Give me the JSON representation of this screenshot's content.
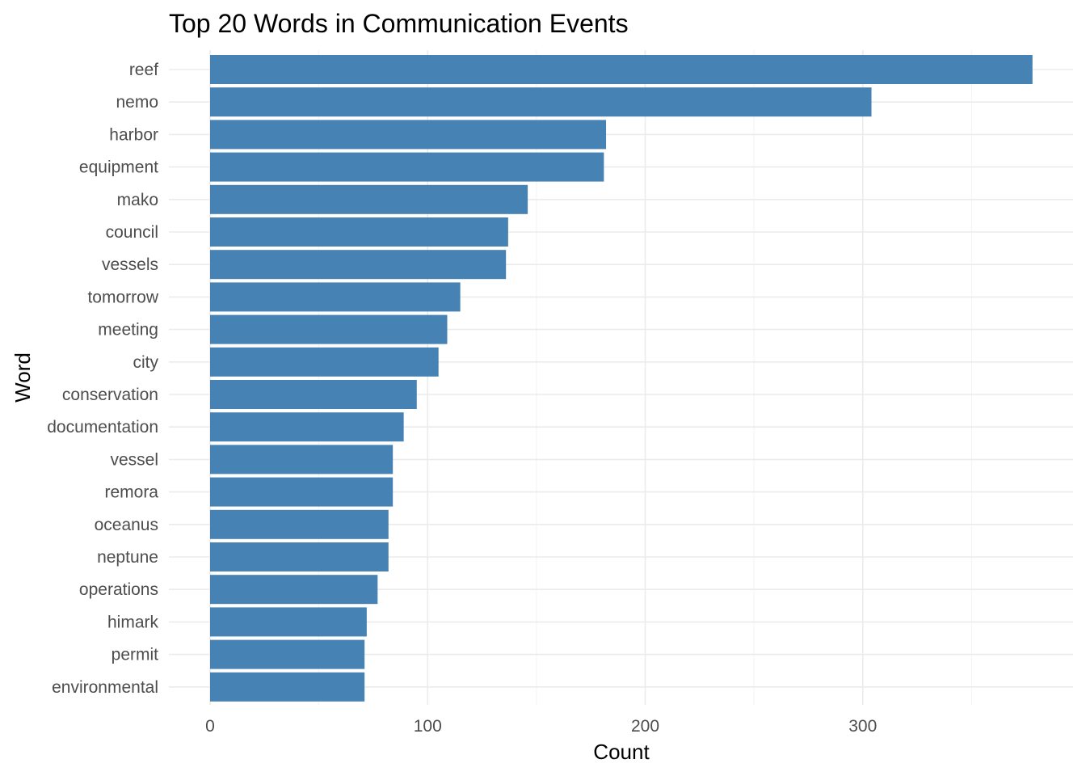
{
  "chart_data": {
    "type": "bar",
    "orientation": "horizontal",
    "title": "Top 20 Words in Communication Events",
    "xlabel": "Count",
    "ylabel": "Word",
    "categories": [
      "reef",
      "nemo",
      "harbor",
      "equipment",
      "mako",
      "council",
      "vessels",
      "tomorrow",
      "meeting",
      "city",
      "conservation",
      "documentation",
      "vessel",
      "remora",
      "oceanus",
      "neptune",
      "operations",
      "himark",
      "permit",
      "environmental"
    ],
    "values": [
      378,
      304,
      182,
      181,
      146,
      137,
      136,
      115,
      109,
      105,
      95,
      89,
      84,
      84,
      82,
      82,
      77,
      72,
      71,
      71
    ],
    "xlim": [
      0,
      378
    ],
    "xticks": [
      0,
      100,
      200,
      300
    ],
    "xtick_labels": [
      "0",
      "100",
      "200",
      "300"
    ],
    "grid": true,
    "bar_color": "#4682b4",
    "legend": "none"
  }
}
